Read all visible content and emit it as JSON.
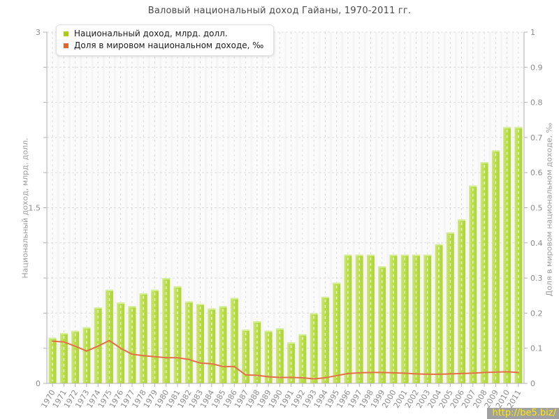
{
  "title": "Валовый национальный доход Гайаны, 1970-2011 гг.",
  "legend": [
    {
      "label": "Национальный доход, млрд. долл.",
      "color": "#a8ce14"
    },
    {
      "label": "Доля в мировом национальном доходе, ‰",
      "color": "#e0662a"
    }
  ],
  "watermark": "http://be5.biz/",
  "colors": {
    "bar_fill": "#b9dd49",
    "bar_fill_light": "#cfe87e",
    "bar_fill_dark": "#aed539",
    "bar_cap": "#d7ee9b",
    "line": "#e56f48",
    "grid": "#dcdcdc",
    "axis": "#b3b3b3",
    "tick_label": "#8c8c8c",
    "plot_bg": "#f5f5f5"
  },
  "chart_data": {
    "type": "bar",
    "title": "Валовый национальный доход Гайаны, 1970-2011 гг.",
    "x": [
      "1970",
      "1971",
      "1972",
      "1973",
      "1974",
      "1975",
      "1976",
      "1977",
      "1978",
      "1979",
      "1980",
      "1981",
      "1982",
      "1983",
      "1984",
      "1985",
      "1986",
      "1987",
      "1988",
      "1989",
      "1990",
      "1991",
      "1992",
      "1993",
      "1994",
      "1995",
      "1996",
      "1997",
      "1998",
      "1999",
      "2000",
      "2001",
      "2002",
      "2003",
      "2004",
      "2005",
      "2006",
      "2007",
      "2008",
      "2009",
      "2010",
      "2011"
    ],
    "series": [
      {
        "name": "Национальный доход, млрд. долл.",
        "type": "bar",
        "axis": "left",
        "color": "#b9dd49",
        "values": [
          0.39,
          0.43,
          0.45,
          0.48,
          0.65,
          0.8,
          0.69,
          0.66,
          0.77,
          0.8,
          0.9,
          0.83,
          0.7,
          0.68,
          0.64,
          0.66,
          0.73,
          0.46,
          0.53,
          0.45,
          0.47,
          0.35,
          0.42,
          0.6,
          0.74,
          0.86,
          1.1,
          1.1,
          1.1,
          1.0,
          1.1,
          1.1,
          1.1,
          1.1,
          1.19,
          1.29,
          1.4,
          1.69,
          1.89,
          1.99,
          2.19,
          2.19
        ]
      },
      {
        "name": "Доля в мировом национальном доходе, ‰",
        "type": "line",
        "axis": "right",
        "color": "#e56f48",
        "values": [
          0.12,
          0.118,
          0.106,
          0.092,
          0.106,
          0.122,
          0.1,
          0.083,
          0.079,
          0.076,
          0.073,
          0.073,
          0.068,
          0.058,
          0.056,
          0.048,
          0.048,
          0.024,
          0.023,
          0.019,
          0.017,
          0.017,
          0.016,
          0.013,
          0.016,
          0.022,
          0.028,
          0.03,
          0.031,
          0.031,
          0.03,
          0.029,
          0.027,
          0.026,
          0.026,
          0.027,
          0.028,
          0.029,
          0.031,
          0.032,
          0.033,
          0.031
        ]
      }
    ],
    "left_axis": {
      "label": "Национальный доход, млрд. долл.",
      "range": [
        0,
        3
      ],
      "tick_values": [
        0,
        1.5,
        3
      ],
      "tick_labels": [
        "0",
        "1.5",
        "3"
      ]
    },
    "right_axis": {
      "label": "Доля в мировом национальном доходе, ‰",
      "range": [
        0,
        1
      ],
      "tick_labels": [
        "0",
        "0.1",
        "0.2",
        "0.3",
        "0.4",
        "0.5",
        "0.6",
        "0.7",
        "0.8",
        "0.9",
        "1"
      ]
    },
    "grid": true,
    "legend_position": "top-left"
  }
}
